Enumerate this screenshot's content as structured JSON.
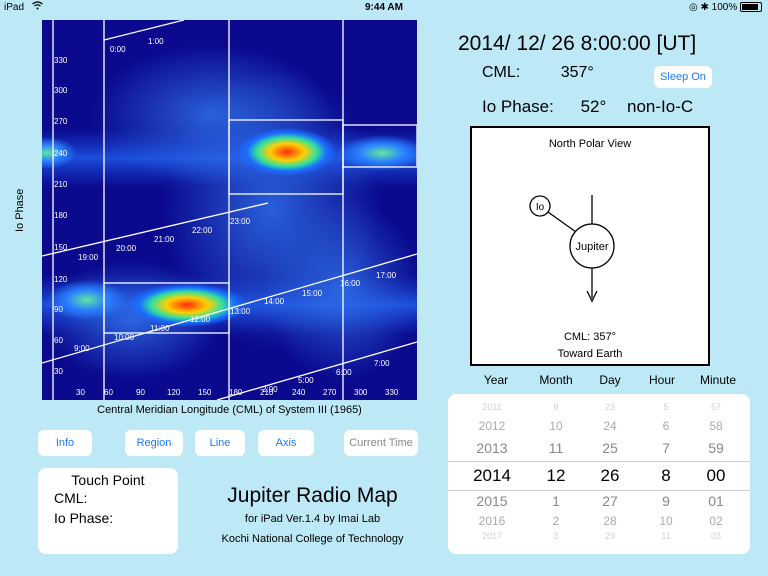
{
  "status": {
    "device": "iPad",
    "time": "9:44 AM",
    "battery": "100%"
  },
  "plot": {
    "ylabel": "Io Phase",
    "xlabel": "Central Meridian Longitude (CML) of System III (1965)",
    "y_ticks": [
      "330",
      "300",
      "270",
      "240",
      "210",
      "180",
      "150",
      "120",
      "90",
      "60",
      "30"
    ],
    "x_ticks": [
      "30",
      "60",
      "90",
      "120",
      "150",
      "180",
      "210",
      "240",
      "270",
      "300",
      "330"
    ],
    "time_labels": [
      "0:00",
      "1:00",
      "9:00",
      "10:00",
      "11:00",
      "12:00",
      "13:00",
      "14:00",
      "15:00",
      "16:00",
      "17:00",
      "19:00",
      "20:00",
      "21:00",
      "22:00",
      "23:00",
      "2:00",
      "5:00",
      "6:00",
      "7:00"
    ]
  },
  "buttons": {
    "info": "Info",
    "region": "Region",
    "line": "Line",
    "axis": "Axis",
    "current_time": "Current Time",
    "sleep_on": "Sleep On"
  },
  "touch": {
    "title": "Touch Point",
    "cml_label": "CML:",
    "io_label": "Io Phase:"
  },
  "app": {
    "title": "Jupiter Radio Map",
    "sub1": "for iPad  Ver.1.4  by Imai Lab",
    "sub2": "Kochi National College of Technology"
  },
  "info": {
    "datetime": "2014/ 12/ 26    8:00:00 [UT]",
    "cml_label": "CML:",
    "cml_value": "357°",
    "io_label": "Io Phase:",
    "io_value": "52°",
    "io_region": "non-Io-C"
  },
  "npv": {
    "title": "North Polar View",
    "io": "Io",
    "jupiter": "Jupiter",
    "cml": "CML: 357°",
    "toward": "Toward Earth"
  },
  "picker": {
    "headers": [
      "Year",
      "Month",
      "Day",
      "Hour",
      "Minute"
    ],
    "columns": [
      [
        "2011",
        "2012",
        "2013",
        "2014",
        "2015",
        "2016",
        "2017"
      ],
      [
        "9",
        "10",
        "11",
        "12",
        "1",
        "2",
        "3"
      ],
      [
        "23",
        "24",
        "25",
        "26",
        "27",
        "28",
        "29"
      ],
      [
        "5",
        "6",
        "7",
        "8",
        "9",
        "10",
        "11"
      ],
      [
        "57",
        "58",
        "59",
        "00",
        "01",
        "02",
        "03"
      ]
    ]
  }
}
